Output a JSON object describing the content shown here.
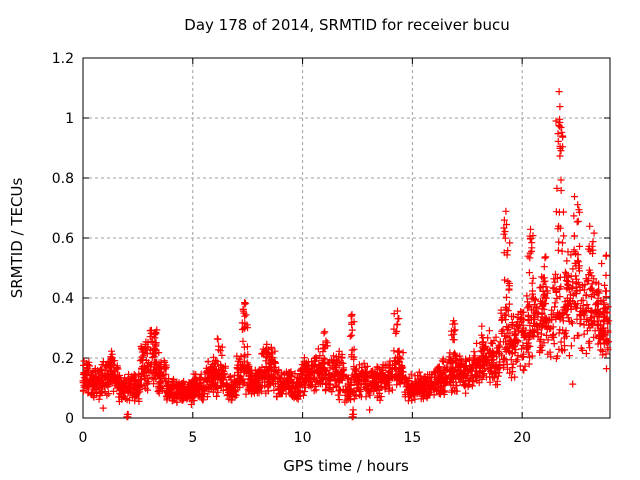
{
  "chart_data": {
    "type": "scatter",
    "title": "Day 178 of 2014, SRMTID for receiver bucu",
    "xlabel": "GPS time / hours",
    "ylabel": "SRMTID / TECUs",
    "xlim": [
      0,
      24
    ],
    "ylim": [
      0,
      1.2
    ],
    "xtick_labels": [
      "0",
      "5",
      "10",
      "15",
      "20"
    ],
    "ytick_labels": [
      "0",
      "0.2",
      "0.4",
      "0.6",
      "0.8",
      "1",
      "1.2"
    ],
    "grid": true,
    "legend": "none",
    "marker": "+",
    "marker_color": "#ff0000",
    "grid_color": "#9e9e9e",
    "border_color": "#000000",
    "background_color": "#ffffff",
    "series": [
      {
        "name": "SRMTID",
        "bands_format": "[t_start_hours, t_end_hours, y_min_TECUs, y_max_TECUs, n_points]",
        "bands": [
          [
            0.0,
            0.3,
            0.06,
            0.21,
            40
          ],
          [
            0.3,
            0.8,
            0.06,
            0.17,
            60
          ],
          [
            0.8,
            1.2,
            0.07,
            0.2,
            50
          ],
          [
            1.2,
            1.6,
            0.08,
            0.23,
            50
          ],
          [
            1.6,
            2.1,
            0.05,
            0.15,
            60
          ],
          [
            2.1,
            2.6,
            0.05,
            0.16,
            60
          ],
          [
            2.6,
            3.0,
            0.07,
            0.26,
            55
          ],
          [
            3.0,
            3.4,
            0.1,
            0.33,
            55
          ],
          [
            3.4,
            3.8,
            0.06,
            0.22,
            50
          ],
          [
            3.8,
            4.3,
            0.04,
            0.14,
            60
          ],
          [
            4.3,
            5.0,
            0.04,
            0.13,
            85
          ],
          [
            5.0,
            5.6,
            0.05,
            0.16,
            70
          ],
          [
            5.6,
            6.5,
            0.06,
            0.22,
            100
          ],
          [
            6.5,
            7.0,
            0.05,
            0.15,
            60
          ],
          [
            7.0,
            7.6,
            0.07,
            0.22,
            70
          ],
          [
            7.6,
            8.1,
            0.06,
            0.17,
            60
          ],
          [
            8.1,
            8.8,
            0.07,
            0.25,
            80
          ],
          [
            8.8,
            9.5,
            0.06,
            0.17,
            80
          ],
          [
            9.5,
            9.9,
            0.05,
            0.15,
            45
          ],
          [
            9.9,
            10.4,
            0.07,
            0.22,
            55
          ],
          [
            10.4,
            11.0,
            0.07,
            0.24,
            65
          ],
          [
            11.0,
            11.9,
            0.06,
            0.22,
            90
          ],
          [
            11.9,
            12.25,
            0.04,
            0.14,
            30
          ],
          [
            12.25,
            13.0,
            0.06,
            0.19,
            75
          ],
          [
            13.0,
            13.6,
            0.05,
            0.18,
            65
          ],
          [
            13.6,
            14.1,
            0.07,
            0.2,
            55
          ],
          [
            14.1,
            14.6,
            0.08,
            0.24,
            50
          ],
          [
            14.6,
            15.3,
            0.05,
            0.15,
            75
          ],
          [
            15.3,
            16.0,
            0.05,
            0.16,
            75
          ],
          [
            16.0,
            16.6,
            0.07,
            0.2,
            65
          ],
          [
            16.6,
            17.1,
            0.08,
            0.23,
            55
          ],
          [
            17.1,
            17.8,
            0.08,
            0.22,
            75
          ],
          [
            17.8,
            18.4,
            0.1,
            0.27,
            65
          ],
          [
            18.4,
            19.0,
            0.1,
            0.3,
            65
          ],
          [
            19.0,
            19.6,
            0.12,
            0.38,
            60
          ],
          [
            19.6,
            20.2,
            0.12,
            0.4,
            60
          ],
          [
            20.2,
            20.8,
            0.15,
            0.45,
            60
          ],
          [
            20.8,
            21.4,
            0.15,
            0.48,
            60
          ],
          [
            21.4,
            22.0,
            0.18,
            0.55,
            60
          ],
          [
            22.0,
            22.6,
            0.2,
            0.6,
            60
          ],
          [
            22.6,
            23.2,
            0.2,
            0.55,
            60
          ],
          [
            23.2,
            23.6,
            0.18,
            0.5,
            50
          ],
          [
            23.6,
            23.95,
            0.15,
            0.45,
            45
          ]
        ],
        "spikes_format": "[t_start_hours, t_end_hours, y_min_TECUs, y_max_TECUs, n_points]",
        "spikes": [
          [
            6.0,
            6.35,
            0.14,
            0.27,
            12
          ],
          [
            7.25,
            7.5,
            0.22,
            0.4,
            20
          ],
          [
            8.3,
            8.6,
            0.18,
            0.25,
            10
          ],
          [
            10.9,
            11.15,
            0.18,
            0.3,
            10
          ],
          [
            11.55,
            11.8,
            0.15,
            0.25,
            8
          ],
          [
            12.15,
            12.35,
            0.15,
            0.35,
            16
          ],
          [
            14.15,
            14.4,
            0.2,
            0.36,
            14
          ],
          [
            16.75,
            16.95,
            0.18,
            0.33,
            12
          ],
          [
            18.15,
            18.35,
            0.2,
            0.33,
            10
          ],
          [
            19.15,
            19.45,
            0.35,
            0.7,
            22
          ],
          [
            20.25,
            20.5,
            0.4,
            0.63,
            16
          ],
          [
            20.85,
            21.1,
            0.38,
            0.58,
            12
          ],
          [
            21.55,
            21.9,
            0.55,
            0.8,
            14
          ],
          [
            21.6,
            21.85,
            0.83,
            1.0,
            14
          ],
          [
            22.35,
            22.65,
            0.42,
            0.74,
            20
          ],
          [
            23.0,
            23.3,
            0.4,
            0.65,
            12
          ],
          [
            23.45,
            23.85,
            0.25,
            0.55,
            16
          ]
        ],
        "points_format": "[t_hours, y_TECUs]",
        "points": [
          [
            0.05,
            0.19
          ],
          [
            0.92,
            0.033
          ],
          [
            2.0,
            0.004
          ],
          [
            2.04,
            0.004
          ],
          [
            2.02,
            0.012
          ],
          [
            2.06,
            0.012
          ],
          [
            12.26,
            0.004
          ],
          [
            12.3,
            0.004
          ],
          [
            12.28,
            0.012
          ],
          [
            12.32,
            0.012
          ],
          [
            12.3,
            0.027
          ],
          [
            13.05,
            0.027
          ],
          [
            21.68,
            1.088
          ],
          [
            21.72,
            1.038
          ],
          [
            21.54,
            0.99
          ],
          [
            21.72,
            0.985
          ],
          [
            22.3,
            0.113
          ]
        ]
      }
    ]
  }
}
